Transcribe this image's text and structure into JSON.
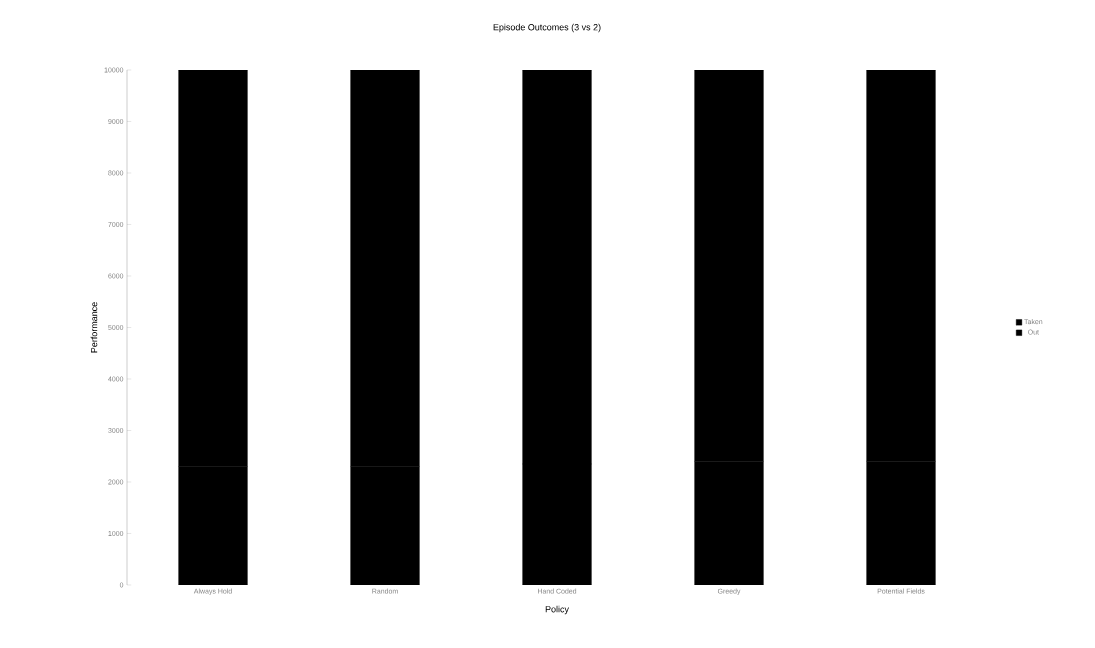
{
  "chart_data": {
    "type": "bar",
    "stacked": true,
    "title": "Episode Outcomes (3 vs 2)",
    "xlabel": "Policy",
    "ylabel": "Performance",
    "categories": [
      "Always Hold",
      "Random",
      "Hand Coded",
      "Greedy",
      "Potential Fields"
    ],
    "series": [
      {
        "name": "Taken",
        "color": "#000000",
        "values": [
          2300,
          2300,
          2350,
          2400,
          2400
        ]
      },
      {
        "name": "Out",
        "color": "#000000",
        "values": [
          7700,
          7700,
          7650,
          7600,
          7600
        ]
      }
    ],
    "ylim": [
      0,
      10000
    ],
    "yticks": [
      0,
      1000,
      2000,
      3000,
      4000,
      5000,
      6000,
      7000,
      8000,
      9000,
      10000
    ],
    "grid": false,
    "legend": "right"
  }
}
